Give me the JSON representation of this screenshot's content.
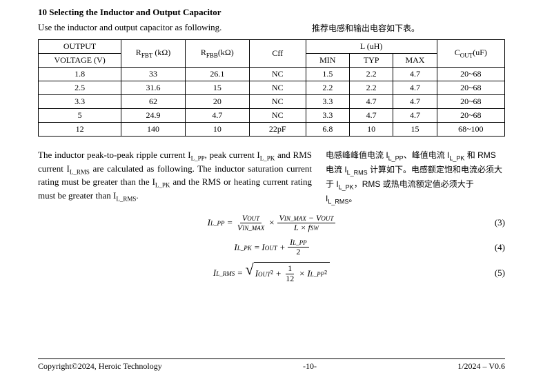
{
  "heading": "10 Selecting the Inductor and Output Capacitor",
  "intro_left": "Use the inductor and output capacitor as following.",
  "intro_right": "推荐电感和输出电容如下表。",
  "table": {
    "col_output": "OUTPUT",
    "col_voltage": "VOLTAGE (V)",
    "col_rfbt": "R",
    "col_rfbt_sub": "FBT",
    "col_rfbt_unit": " (kΩ)",
    "col_rfbb": "R",
    "col_rfbb_sub": "FBB",
    "col_rfbb_unit": "(kΩ)",
    "col_cff": "Cff",
    "col_l": "L (uH)",
    "col_min": "MIN",
    "col_typ": "TYP",
    "col_max": "MAX",
    "col_cout": "C",
    "col_cout_sub": "OUT",
    "col_cout_unit": "(uF)",
    "rows": [
      {
        "v": "1.8",
        "rfbt": "33",
        "rfbb": "26.1",
        "cff": "NC",
        "min": "1.5",
        "typ": "2.2",
        "max": "4.7",
        "cout": "20~68"
      },
      {
        "v": "2.5",
        "rfbt": "31.6",
        "rfbb": "15",
        "cff": "NC",
        "min": "2.2",
        "typ": "2.2",
        "max": "4.7",
        "cout": "20~68"
      },
      {
        "v": "3.3",
        "rfbt": "62",
        "rfbb": "20",
        "cff": "NC",
        "min": "3.3",
        "typ": "4.7",
        "max": "4.7",
        "cout": "20~68"
      },
      {
        "v": "5",
        "rfbt": "24.9",
        "rfbb": "4.7",
        "cff": "NC",
        "min": "3.3",
        "typ": "4.7",
        "max": "4.7",
        "cout": "20~68"
      },
      {
        "v": "12",
        "rfbt": "140",
        "rfbb": "10",
        "cff": "22pF",
        "min": "6.8",
        "typ": "10",
        "max": "15",
        "cout": "68~100"
      }
    ],
    "col_widths": {
      "voltage": "110px",
      "rfbt": "85px",
      "rfbb": "85px",
      "cff": "75px",
      "min": "58px",
      "typ": "58px",
      "max": "58px",
      "cout": "90px"
    }
  },
  "para_left_parts": {
    "t1": "The inductor peak-to-peak ripple current I",
    "s1": "L_PP",
    "t2": ", peak current I",
    "s2": "L_PK",
    "t3": " and RMS current I",
    "s3": "L_RMS",
    "t4": " are calculated as following. The inductor saturation current rating must be greater than the I",
    "s4": "L_PK",
    "t5": " and the RMS or heating current rating must be greater than I",
    "s5": "L_RMS",
    "t6": "."
  },
  "para_right_parts": {
    "t1": "电感峰峰值电流 I",
    "s1": "L_PP",
    "t2": "、峰值电流 I",
    "s2": "L_PK",
    "t3": " 和 RMS 电流 I",
    "s3": "L_RMS",
    "t4": " 计算如下。电感额定饱和电流必须大于 I",
    "s4": "L_PK",
    "t5": "，RMS 或热电流额定值必须大于 I",
    "s5": "L_RMS",
    "t6": "。"
  },
  "eq3": {
    "lhs": "I",
    "lhs_sub": "L_PP",
    "eq": " = ",
    "f1_num": "V",
    "f1_num_sub": "OUT",
    "f1_den": "V",
    "f1_den_sub": "IN_MAX",
    "times": " × ",
    "f2_num_a": "V",
    "f2_num_a_sub": "IN_MAX",
    "f2_num_minus": " − V",
    "f2_num_b_sub": "OUT",
    "f2_den": "L × f",
    "f2_den_sub": "SW",
    "num": "(3)"
  },
  "eq4": {
    "lhs": "I",
    "lhs_sub": "L_PK",
    "eq": " = I",
    "iout_sub": "OUT",
    "plus": " + ",
    "f_num": "I",
    "f_num_sub": "L_PP",
    "f_den": "2",
    "num": "(4)"
  },
  "eq5": {
    "lhs": "I",
    "lhs_sub": "L_RMS",
    "eq": " = ",
    "iout": "I",
    "iout_sub": "OUT",
    "sq1": "²",
    "plus": " + ",
    "f_num": "1",
    "f_den": "12",
    "times": " × I",
    "ilpp_sub": "L_PP",
    "sq2": "²",
    "num": "(5)"
  },
  "footer": {
    "left": "Copyright©2024, Heroic Technology",
    "center": "-10-",
    "right": "1/2024 – V0.6"
  }
}
